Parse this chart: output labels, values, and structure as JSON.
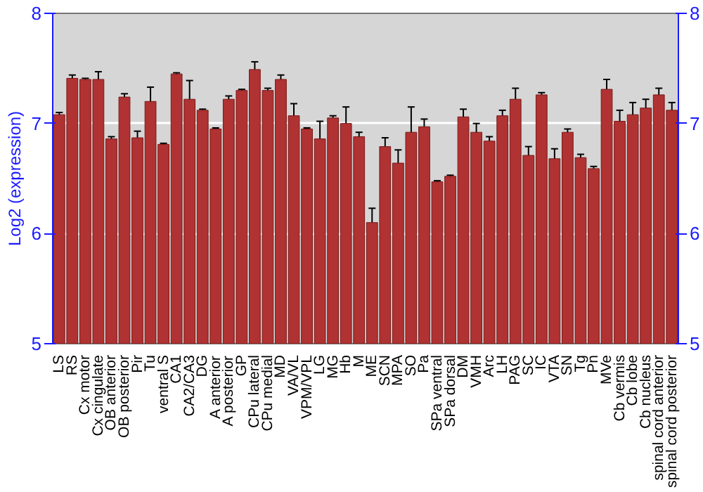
{
  "chart_data": {
    "type": "bar",
    "ylabel": "Log2 (expression)",
    "categories": [
      "LS",
      "RS",
      "Cx motor",
      "Cx cingulate",
      "OB anterior",
      "OB posterior",
      "Pir",
      "Tu",
      "ventral S",
      "CA1",
      "CA2/CA3",
      "DG",
      "A anterior",
      "A posterior",
      "GP",
      "CPu lateral",
      "CPu medial",
      "MD",
      "VA/VL",
      "VPM/VPL",
      "LG",
      "MG",
      "Hb",
      "M",
      "ME",
      "SCN",
      "MPA",
      "SO",
      "Pa",
      "SPa ventral",
      "SPa dorsal",
      "DM",
      "VMH",
      "Arc",
      "LH",
      "PAG",
      "SC",
      "IC",
      "VTA",
      "SN",
      "Tg",
      "Pn",
      "MVe",
      "Cb vermis",
      "Cb lobe",
      "Cb nucleus",
      "spinal cord anterior",
      "spinal cord posterior"
    ],
    "values": [
      7.08,
      7.41,
      7.4,
      7.4,
      6.86,
      7.24,
      6.87,
      7.2,
      6.81,
      7.45,
      7.22,
      7.12,
      6.95,
      7.22,
      7.3,
      7.49,
      7.3,
      7.4,
      7.07,
      6.95,
      6.86,
      7.05,
      7.0,
      6.88,
      6.1,
      6.79,
      6.64,
      6.92,
      6.97,
      6.47,
      6.52,
      7.06,
      6.92,
      6.84,
      7.07,
      7.22,
      6.71,
      7.26,
      6.68,
      6.92,
      6.69,
      6.59,
      7.31,
      7.02,
      7.08,
      7.14,
      7.26,
      7.12
    ],
    "errors": [
      0.02,
      0.03,
      0.01,
      0.07,
      0.02,
      0.03,
      0.06,
      0.13,
      0.01,
      0.01,
      0.17,
      0.01,
      0.01,
      0.03,
      0.01,
      0.07,
      0.02,
      0.04,
      0.11,
      0.01,
      0.16,
      0.02,
      0.15,
      0.04,
      0.13,
      0.08,
      0.12,
      0.23,
      0.07,
      0.01,
      0.01,
      0.07,
      0.08,
      0.04,
      0.05,
      0.1,
      0.08,
      0.02,
      0.09,
      0.03,
      0.03,
      0.02,
      0.09,
      0.1,
      0.11,
      0.08,
      0.06,
      0.07
    ],
    "color": "#b03232",
    "ylim": [
      5,
      8
    ],
    "yticks": [
      5,
      6,
      7,
      8
    ],
    "y2lim": [
      5,
      8
    ],
    "y2ticks": [
      5,
      6,
      7,
      8
    ],
    "grid": "y"
  }
}
